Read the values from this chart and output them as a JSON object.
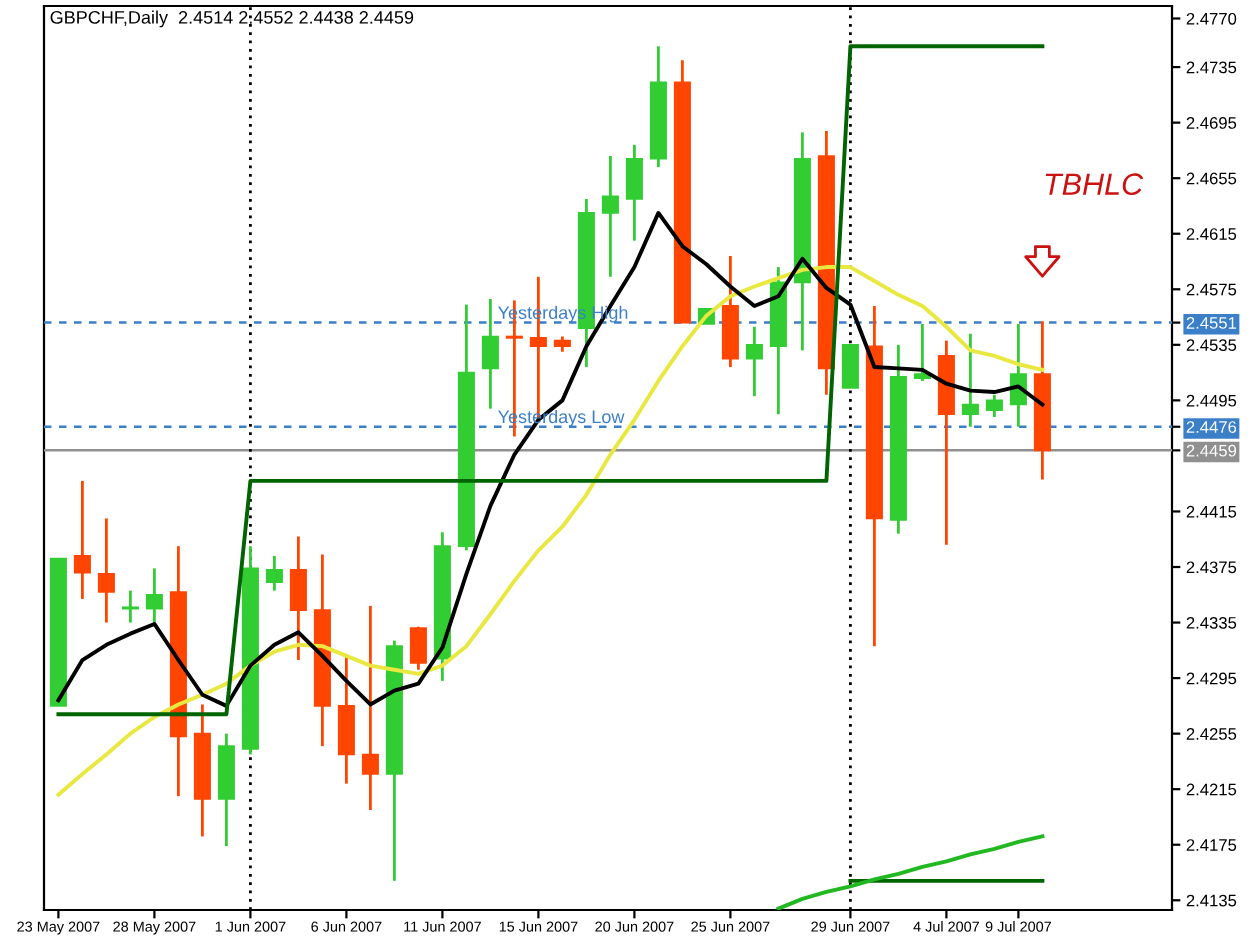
{
  "chart_data": {
    "type": "candlestick",
    "title": "GBPCHF,Daily  2.4514 2.4552 2.4438 2.4459",
    "annotations": [
      "TBHLC"
    ],
    "categories": [
      "23 May 2007",
      null,
      null,
      null,
      "28 May 2007",
      null,
      null,
      null,
      "1 Jun 2007",
      null,
      null,
      null,
      "6 Jun 2007",
      null,
      null,
      null,
      "11 Jun 2007",
      null,
      null,
      null,
      "15 Jun 2007",
      null,
      null,
      null,
      "20 Jun 2007",
      null,
      null,
      null,
      "25 Jun 2007",
      null,
      null,
      null,
      null,
      "29 Jun 2007",
      null,
      null,
      null,
      "4 Jul 2007",
      null,
      null,
      "9 Jul 2007",
      null
    ],
    "ohlc": [
      [
        2.4275,
        2.4381,
        2.4275,
        2.4381
      ],
      [
        2.4383,
        2.4437,
        2.4352,
        2.4371
      ],
      [
        2.437,
        2.441,
        2.4335,
        2.4357
      ],
      [
        2.4345,
        2.4358,
        2.4335,
        2.4346
      ],
      [
        2.4345,
        2.4374,
        2.4334,
        2.4355
      ],
      [
        2.4357,
        2.439,
        2.421,
        2.4253
      ],
      [
        2.4255,
        2.4276,
        2.4181,
        2.4208
      ],
      [
        2.4208,
        2.4255,
        2.4174,
        2.4246
      ],
      [
        2.4244,
        2.439,
        2.424,
        2.4374
      ],
      [
        2.4364,
        2.4383,
        2.4358,
        2.4373
      ],
      [
        2.4373,
        2.4397,
        2.4308,
        2.4344
      ],
      [
        2.4344,
        2.4384,
        2.4246,
        2.4275
      ],
      [
        2.4275,
        2.4312,
        2.4219,
        2.424
      ],
      [
        2.424,
        2.4347,
        2.42,
        2.4226
      ],
      [
        2.4226,
        2.4322,
        2.4149,
        2.4318
      ],
      [
        2.4331,
        2.4332,
        2.4301,
        2.4306
      ],
      [
        2.4309,
        2.44,
        2.4293,
        2.439
      ],
      [
        2.439,
        2.4564,
        2.4387,
        2.4515
      ],
      [
        2.4518,
        2.4568,
        2.4489,
        2.4541
      ],
      [
        2.4541,
        2.4567,
        2.4469,
        2.454
      ],
      [
        2.454,
        2.4584,
        2.4482,
        2.4534
      ],
      [
        2.4538,
        2.4541,
        2.453,
        2.4534
      ],
      [
        2.4547,
        2.464,
        2.4519,
        2.463
      ],
      [
        2.463,
        2.4671,
        2.4584,
        2.4642
      ],
      [
        2.464,
        2.4679,
        2.461,
        2.4669
      ],
      [
        2.4669,
        2.475,
        2.4663,
        2.4724
      ],
      [
        2.4724,
        2.474,
        2.4551,
        2.4551
      ],
      [
        2.455,
        2.4561,
        2.455,
        2.4561
      ],
      [
        2.4563,
        2.4599,
        2.4519,
        2.4525
      ],
      [
        2.4525,
        2.4548,
        2.4498,
        2.4535
      ],
      [
        2.4534,
        2.4591,
        2.4485,
        2.458
      ],
      [
        2.458,
        2.4688,
        2.4531,
        2.4669
      ],
      [
        2.4671,
        2.4689,
        2.4499,
        2.4518
      ],
      [
        2.4504,
        2.4535,
        2.4504,
        2.4535
      ],
      [
        2.4534,
        2.4563,
        2.4318,
        2.441
      ],
      [
        2.4409,
        2.4535,
        2.4399,
        2.4512
      ],
      [
        2.4511,
        2.455,
        2.4509,
        2.4514
      ],
      [
        2.4527,
        2.4538,
        2.4391,
        2.4485
      ],
      [
        2.4485,
        2.4543,
        2.4476,
        2.4492
      ],
      [
        2.4488,
        2.4499,
        2.4483,
        2.4495
      ],
      [
        2.4492,
        2.455,
        2.4476,
        2.4514
      ],
      [
        2.4514,
        2.4552,
        2.4438,
        2.4459
      ]
    ],
    "colors": [
      "#32cd32",
      "#ff4500",
      "#ff4500",
      "#32cd32",
      "#32cd32",
      "#ff4500",
      "#ff4500",
      "#32cd32",
      "#32cd32",
      "#32cd32",
      "#ff4500",
      "#ff4500",
      "#ff4500",
      "#ff4500",
      "#32cd32",
      "#ff4500",
      "#32cd32",
      "#32cd32",
      "#32cd32",
      "#ff4500",
      "#ff4500",
      "#ff4500",
      "#32cd32",
      "#32cd32",
      "#32cd32",
      "#32cd32",
      "#ff4500",
      "#32cd32",
      "#ff4500",
      "#32cd32",
      "#32cd32",
      "#32cd32",
      "#ff4500",
      "#32cd32",
      "#ff4500",
      "#32cd32",
      "#32cd32",
      "#ff4500",
      "#32cd32",
      "#32cd32",
      "#32cd32",
      "#ff4500"
    ],
    "series": [
      {
        "type": "line",
        "color": "#e8e840",
        "values": [
          2.4211,
          2.4226,
          2.424,
          2.4255,
          2.4267,
          2.4276,
          2.4283,
          2.4291,
          2.4304,
          2.4314,
          2.4319,
          2.4318,
          2.4311,
          2.4304,
          2.4301,
          2.4298,
          2.4304,
          2.4318,
          2.4341,
          2.4365,
          2.4387,
          2.4404,
          2.4427,
          2.4456,
          2.4481,
          2.4509,
          2.4534,
          2.4556,
          2.457,
          2.4577,
          2.4583,
          2.4589,
          2.4591,
          2.4591,
          2.4581,
          2.4571,
          2.4563,
          2.4548,
          2.4531,
          2.4527,
          2.4521,
          2.4517
        ]
      },
      {
        "type": "line",
        "color": "#000000",
        "values": [
          2.4279,
          2.4308,
          2.4319,
          2.4327,
          2.4334,
          2.4308,
          2.4283,
          2.4275,
          2.4304,
          2.4319,
          2.4328,
          2.4311,
          2.4293,
          2.4276,
          2.4286,
          2.4291,
          2.4317,
          2.437,
          2.4419,
          2.4456,
          2.4481,
          2.4495,
          2.4534,
          2.4563,
          2.4591,
          2.463,
          2.4606,
          2.4593,
          2.4577,
          2.4563,
          2.457,
          2.4597,
          2.4576,
          2.4564,
          2.4519,
          2.4518,
          2.4517,
          2.4507,
          2.4502,
          2.4501,
          2.4505,
          2.4492
        ]
      },
      {
        "type": "line",
        "color": "#006400",
        "values": [
          2.4269,
          2.4269,
          2.4269,
          2.4269,
          2.4269,
          2.4269,
          2.4269,
          2.4269,
          2.4437,
          2.4437,
          2.4437,
          2.4437,
          2.4437,
          2.4437,
          2.4437,
          2.4437,
          2.4437,
          2.4437,
          2.4437,
          2.4437,
          2.4437,
          2.4437,
          2.4437,
          2.4437,
          2.4437,
          2.4437,
          2.4437,
          2.4437,
          2.4437,
          2.4437,
          2.4437,
          2.4437,
          2.4437,
          2.475,
          2.475,
          2.475,
          2.475,
          2.475,
          2.475,
          2.475,
          2.475,
          2.475
        ]
      },
      {
        "type": "line",
        "color": "#006400",
        "values": [
          null,
          null,
          null,
          null,
          null,
          null,
          null,
          null,
          null,
          null,
          null,
          null,
          null,
          null,
          null,
          null,
          null,
          null,
          null,
          null,
          null,
          null,
          null,
          null,
          null,
          null,
          null,
          null,
          null,
          null,
          null,
          null,
          null,
          2.4149,
          2.4149,
          2.4149,
          2.4149,
          2.4149,
          2.4149,
          2.4149,
          2.4149,
          2.4149
        ]
      },
      {
        "type": "line",
        "color": "#22b822",
        "values": [
          null,
          null,
          null,
          null,
          null,
          null,
          null,
          null,
          null,
          null,
          null,
          null,
          null,
          null,
          null,
          null,
          null,
          null,
          null,
          null,
          null,
          null,
          null,
          null,
          null,
          null,
          null,
          null,
          null,
          null,
          2.4129,
          2.4136,
          2.4141,
          2.4145,
          2.415,
          2.4154,
          2.4159,
          2.4163,
          2.4168,
          2.4172,
          2.4177,
          2.4181
        ]
      }
    ],
    "ref_lines": [
      {
        "axis": "y",
        "value": 2.4551,
        "label": "Yesterdays High",
        "color": "#3a7fc8",
        "line_style": "dashed"
      },
      {
        "axis": "y",
        "value": 2.4476,
        "label": "Yesterdays Low",
        "color": "#3a7fc8",
        "line_style": "dashed"
      },
      {
        "axis": "y",
        "value": 2.4459,
        "color": "#909090",
        "line_style": "solid"
      },
      {
        "axis": "x",
        "value": "1 Jun 2007",
        "color": "#000000",
        "line_style": "dotted"
      },
      {
        "axis": "x",
        "value": "29 Jun 2007",
        "color": "#000000",
        "line_style": "dotted"
      }
    ],
    "ylim": [
      2.4128,
      2.4779
    ],
    "yticks": [
      {
        "value": 2.477,
        "label": "2.4770"
      },
      2.4735,
      2.4695,
      2.4655,
      2.4615,
      2.4575,
      2.4551,
      2.4535,
      2.4495,
      2.4476,
      2.4459,
      2.4415,
      2.4375,
      2.4335,
      2.4295,
      2.4255,
      2.4215,
      2.4175,
      2.4135
    ],
    "grid": false,
    "legend": false
  }
}
